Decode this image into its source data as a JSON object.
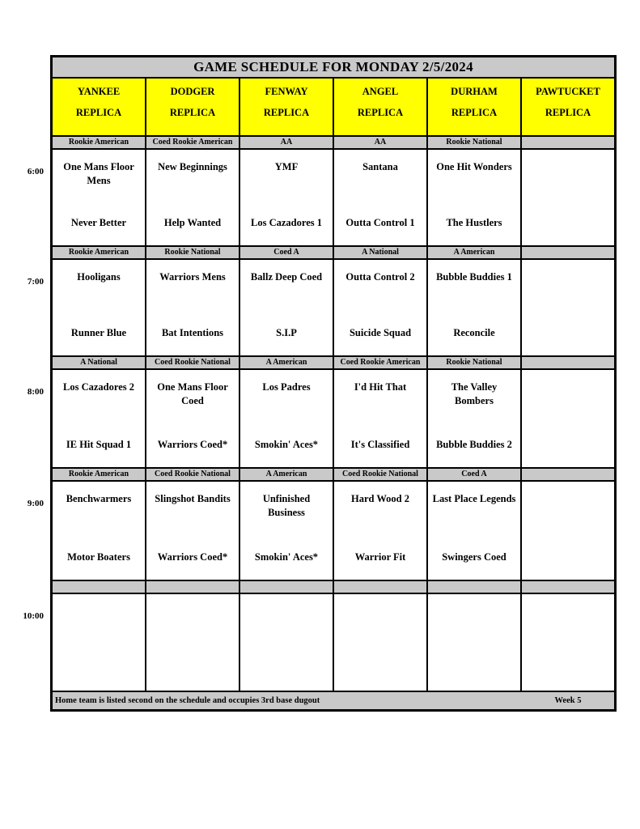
{
  "page": {
    "title": "GAME SCHEDULE FOR MONDAY 2/5/2024",
    "footer_note": "Home team is listed second on the schedule and occupies 3rd base dugout",
    "week_label": "Week 5"
  },
  "colors": {
    "field_header_bg": "#ffff00",
    "bar_bg": "#c9c9c9",
    "grid_line": "#000000",
    "text": "#000000"
  },
  "fields": [
    {
      "name": "YANKEE",
      "type": "REPLICA"
    },
    {
      "name": "DODGER",
      "type": "REPLICA"
    },
    {
      "name": "FENWAY",
      "type": "REPLICA"
    },
    {
      "name": "ANGEL",
      "type": "REPLICA"
    },
    {
      "name": "DURHAM",
      "type": "REPLICA"
    },
    {
      "name": "PAWTUCKET",
      "type": "REPLICA"
    }
  ],
  "rows": [
    {
      "time": "6:00",
      "games": [
        {
          "division": "Rookie American",
          "away": "One Mans Floor Mens",
          "home": "Never Better"
        },
        {
          "division": "Coed Rookie American",
          "away": "New Beginnings",
          "home": "Help Wanted"
        },
        {
          "division": "AA",
          "away": "YMF",
          "home": "Los Cazadores 1"
        },
        {
          "division": "AA",
          "away": "Santana",
          "home": "Outta Control 1"
        },
        {
          "division": "Rookie National",
          "away": "One Hit Wonders",
          "home": "The Hustlers"
        },
        {
          "division": "",
          "away": "",
          "home": ""
        }
      ]
    },
    {
      "time": "7:00",
      "games": [
        {
          "division": "Rookie American",
          "away": "Hooligans",
          "home": "Runner Blue"
        },
        {
          "division": "Rookie National",
          "away": "Warriors Mens",
          "home": "Bat Intentions"
        },
        {
          "division": "Coed A",
          "away": "Ballz Deep Coed",
          "home": "S.I.P"
        },
        {
          "division": "A National",
          "away": "Outta Control 2",
          "home": "Suicide Squad"
        },
        {
          "division": "A American",
          "away": "Bubble Buddies 1",
          "home": "Reconcile"
        },
        {
          "division": "",
          "away": "",
          "home": ""
        }
      ]
    },
    {
      "time": "8:00",
      "games": [
        {
          "division": "A National",
          "away": "Los Cazadores 2",
          "home": "IE Hit Squad 1"
        },
        {
          "division": "Coed Rookie National",
          "away": "One Mans Floor Coed",
          "home": "Warriors Coed*"
        },
        {
          "division": "A American",
          "away": "Los Padres",
          "home": "Smokin' Aces*"
        },
        {
          "division": "Coed Rookie American",
          "away": "I'd Hit That",
          "home": "It's Classified"
        },
        {
          "division": "Rookie National",
          "away": "The Valley Bombers",
          "home": "Bubble Buddies 2"
        },
        {
          "division": "",
          "away": "",
          "home": ""
        }
      ]
    },
    {
      "time": "9:00",
      "games": [
        {
          "division": "Rookie American",
          "away": "Benchwarmers",
          "home": "Motor Boaters"
        },
        {
          "division": "Coed Rookie National",
          "away": "Slingshot Bandits",
          "home": "Warriors Coed*"
        },
        {
          "division": "A American",
          "away": "Unfinished Business",
          "home": "Smokin' Aces*"
        },
        {
          "division": "Coed Rookie National",
          "away": "Hard Wood 2",
          "home": "Warrior Fit"
        },
        {
          "division": "Coed A",
          "away": "Last Place Legends",
          "home": "Swingers Coed"
        },
        {
          "division": "",
          "away": "",
          "home": ""
        }
      ]
    },
    {
      "time": "10:00",
      "games": [
        {
          "division": "",
          "away": "",
          "home": ""
        },
        {
          "division": "",
          "away": "",
          "home": ""
        },
        {
          "division": "",
          "away": "",
          "home": ""
        },
        {
          "division": "",
          "away": "",
          "home": ""
        },
        {
          "division": "",
          "away": "",
          "home": ""
        },
        {
          "division": "",
          "away": "",
          "home": ""
        }
      ]
    }
  ]
}
